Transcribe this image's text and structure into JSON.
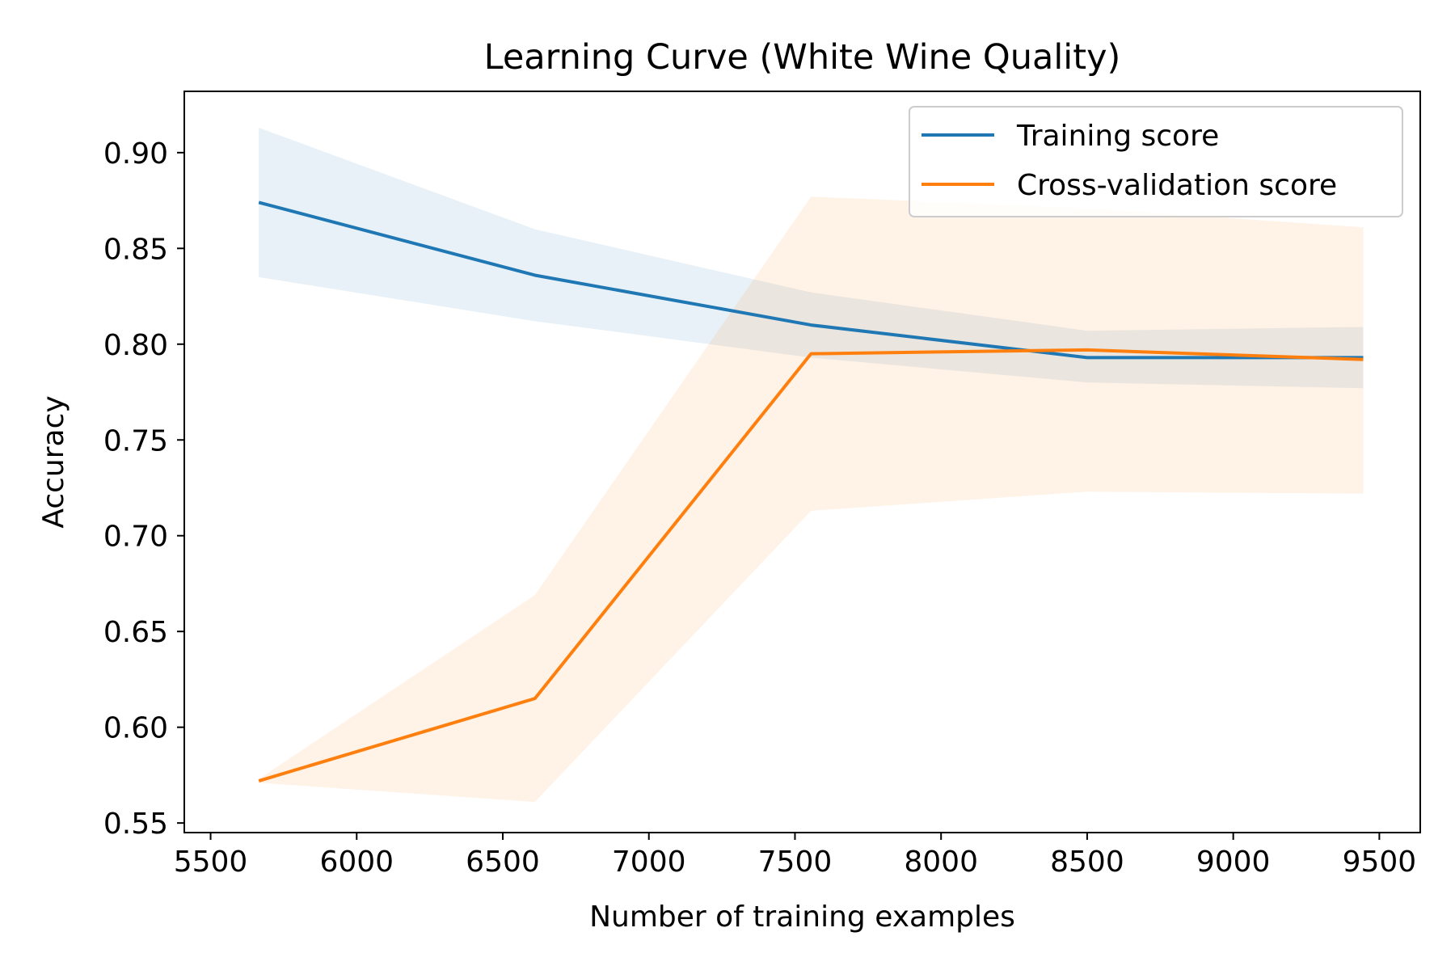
{
  "chart_data": {
    "type": "line",
    "title": "Learning Curve (White Wine Quality)",
    "xlabel": "Number of training examples",
    "ylabel": "Accuracy",
    "xlim": [
      5410,
      9640
    ],
    "ylim": [
      0.545,
      0.932
    ],
    "xticks": [
      5500,
      6000,
      6500,
      7000,
      7500,
      8000,
      8500,
      9000,
      9500
    ],
    "yticks": [
      0.55,
      0.6,
      0.65,
      0.7,
      0.75,
      0.8,
      0.85,
      0.9
    ],
    "x": [
      5665,
      6610,
      7555,
      8500,
      9445
    ],
    "series": [
      {
        "name": "Training score",
        "color": "#1f77b4",
        "values": [
          0.874,
          0.836,
          0.81,
          0.793,
          0.793
        ],
        "band_upper": [
          0.913,
          0.86,
          0.827,
          0.807,
          0.809
        ],
        "band_lower": [
          0.835,
          0.812,
          0.793,
          0.78,
          0.777
        ]
      },
      {
        "name": "Cross-validation score",
        "color": "#ff7f0e",
        "values": [
          0.572,
          0.615,
          0.795,
          0.797,
          0.792
        ],
        "band_upper": [
          0.573,
          0.669,
          0.877,
          0.871,
          0.861
        ],
        "band_lower": [
          0.571,
          0.561,
          0.713,
          0.723,
          0.722
        ]
      }
    ],
    "grid": false,
    "legend_position": "top-right"
  }
}
